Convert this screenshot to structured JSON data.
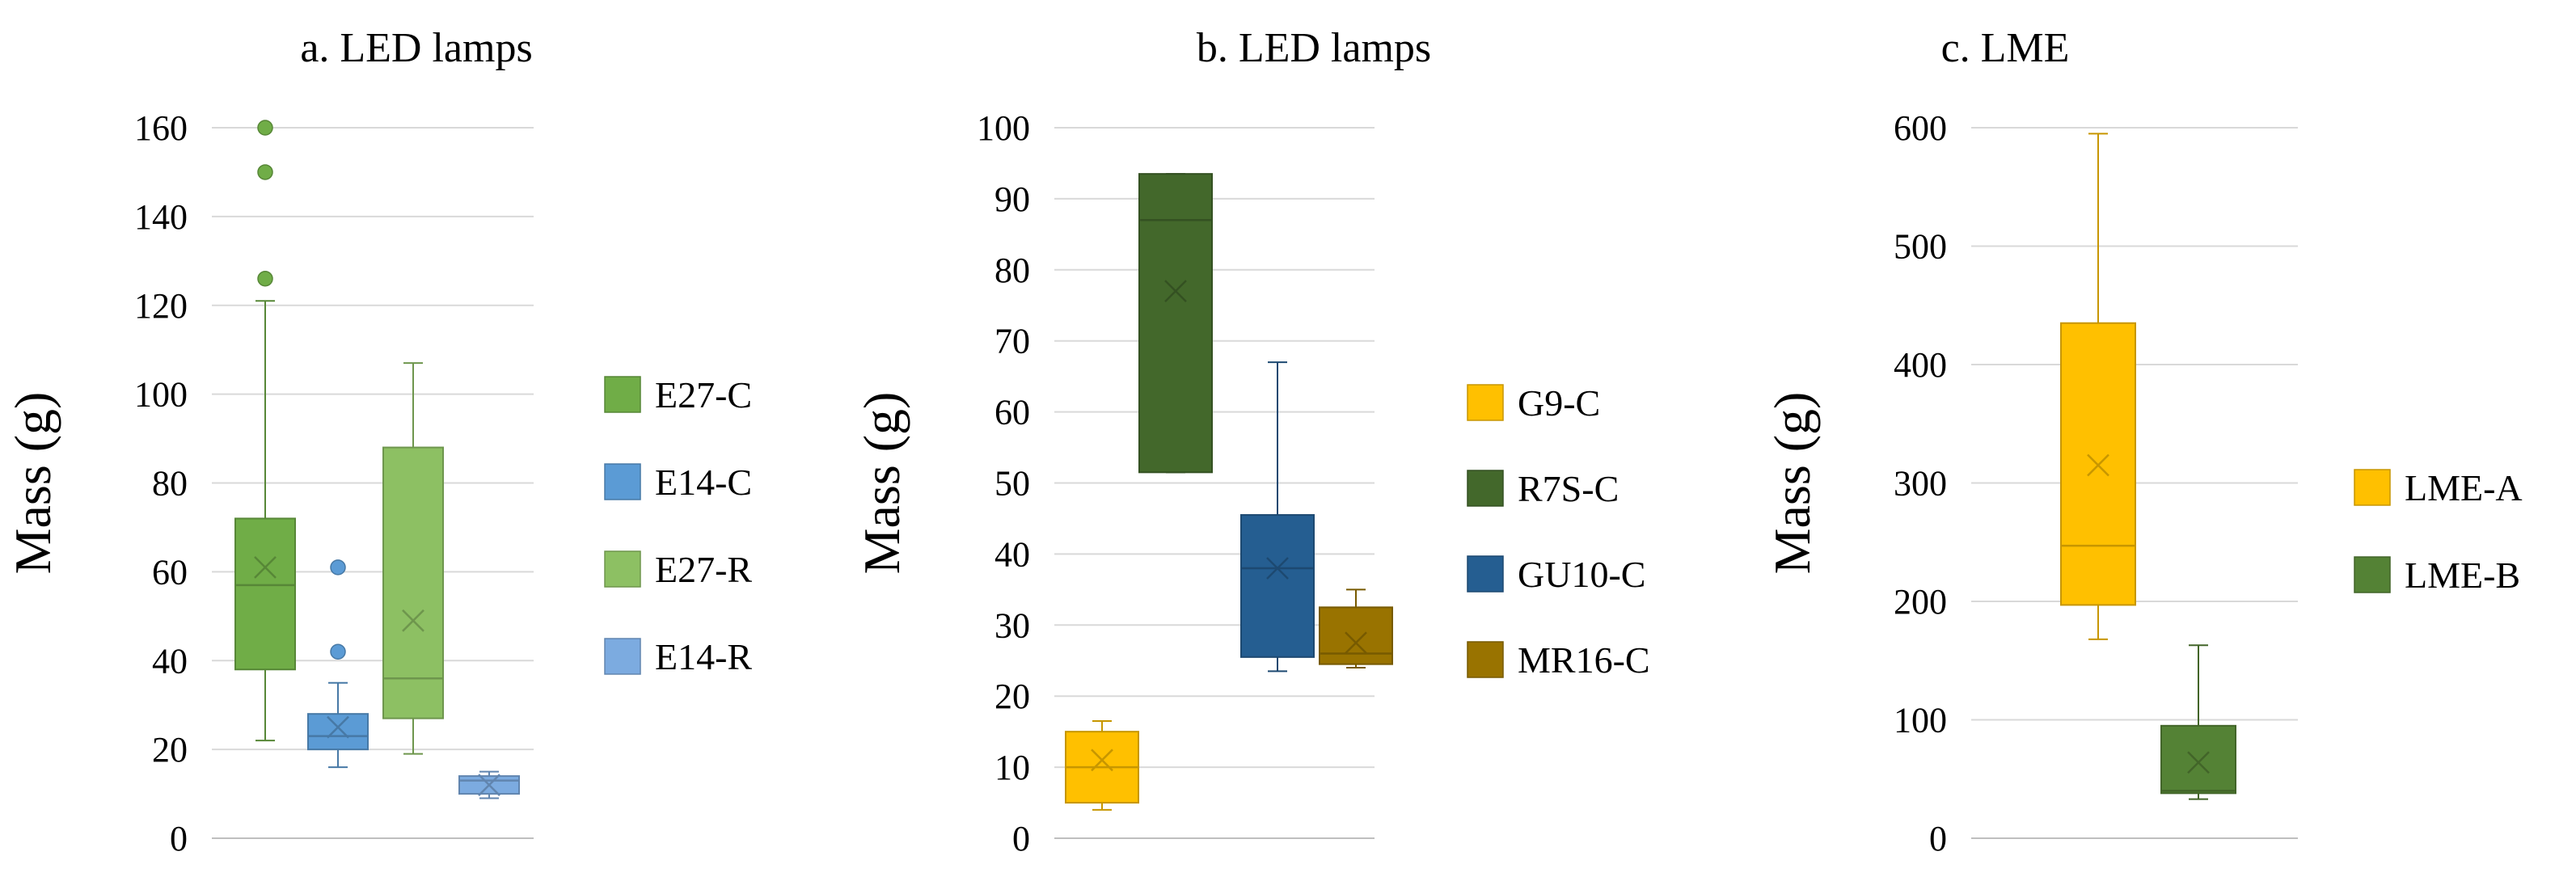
{
  "chart_data": [
    {
      "type": "box",
      "title": "a. LED lamps",
      "xlabel": "",
      "ylabel": "Mass (g)",
      "ylim": [
        0,
        160
      ],
      "yticks": [
        0,
        20,
        40,
        60,
        80,
        100,
        120,
        140,
        160
      ],
      "grid": true,
      "legend_position": "right",
      "series": [
        {
          "name": "E27-C",
          "color": "#70ad47",
          "min": 22,
          "q1": 38,
          "median": 57,
          "q3": 72,
          "max": 121,
          "mean": 61,
          "outliers": [
            126,
            150,
            160
          ]
        },
        {
          "name": "E14-C",
          "color": "#5b9bd5",
          "min": 16,
          "q1": 20,
          "median": 23,
          "q3": 28,
          "max": 35,
          "mean": 25,
          "outliers": [
            42,
            61
          ]
        },
        {
          "name": "E27-R",
          "color": "#8dc063",
          "min": 19,
          "q1": 27,
          "median": 36,
          "q3": 88,
          "max": 107,
          "mean": 49,
          "outliers": []
        },
        {
          "name": "E14-R",
          "color": "#7cabe0",
          "min": 9,
          "q1": 10,
          "median": 13,
          "q3": 14,
          "max": 15,
          "mean": 12,
          "outliers": []
        }
      ]
    },
    {
      "type": "box",
      "title": "b. LED lamps",
      "xlabel": "",
      "ylabel": "Mass (g)",
      "ylim": [
        0,
        100
      ],
      "yticks": [
        0,
        10,
        20,
        30,
        40,
        50,
        60,
        70,
        80,
        90,
        100
      ],
      "grid": true,
      "legend_position": "right",
      "series": [
        {
          "name": "G9-C",
          "color": "#ffc000",
          "min": 4,
          "q1": 5,
          "median": 10,
          "q3": 15,
          "max": 16.5,
          "mean": 11,
          "outliers": []
        },
        {
          "name": "R7S-C",
          "color": "#43682b",
          "min": 51.5,
          "q1": 51.5,
          "median": 87,
          "q3": 93.5,
          "max": 93.5,
          "mean": 77,
          "outliers": []
        },
        {
          "name": "GU10-C",
          "color": "#255e91",
          "min": 23.5,
          "q1": 25.5,
          "median": 38,
          "q3": 45.5,
          "max": 67,
          "mean": 38,
          "outliers": []
        },
        {
          "name": "MR16-C",
          "color": "#997300",
          "min": 24,
          "q1": 24.5,
          "median": 26,
          "q3": 32.5,
          "max": 35,
          "mean": 27.5,
          "outliers": []
        }
      ]
    },
    {
      "type": "box",
      "title": "c. LME",
      "xlabel": "",
      "ylabel": "Mass (g)",
      "ylim": [
        0,
        600
      ],
      "yticks": [
        0,
        100,
        200,
        300,
        400,
        500,
        600
      ],
      "grid": true,
      "legend_position": "right",
      "series": [
        {
          "name": "LME-A",
          "color": "#ffc000",
          "min": 168,
          "q1": 197,
          "median": 247,
          "q3": 435,
          "max": 595,
          "mean": 315,
          "outliers": []
        },
        {
          "name": "LME-B",
          "color": "#548235",
          "min": 33,
          "q1": 38,
          "median": 40,
          "q3": 95,
          "max": 163,
          "mean": 64,
          "outliers": []
        }
      ]
    }
  ]
}
